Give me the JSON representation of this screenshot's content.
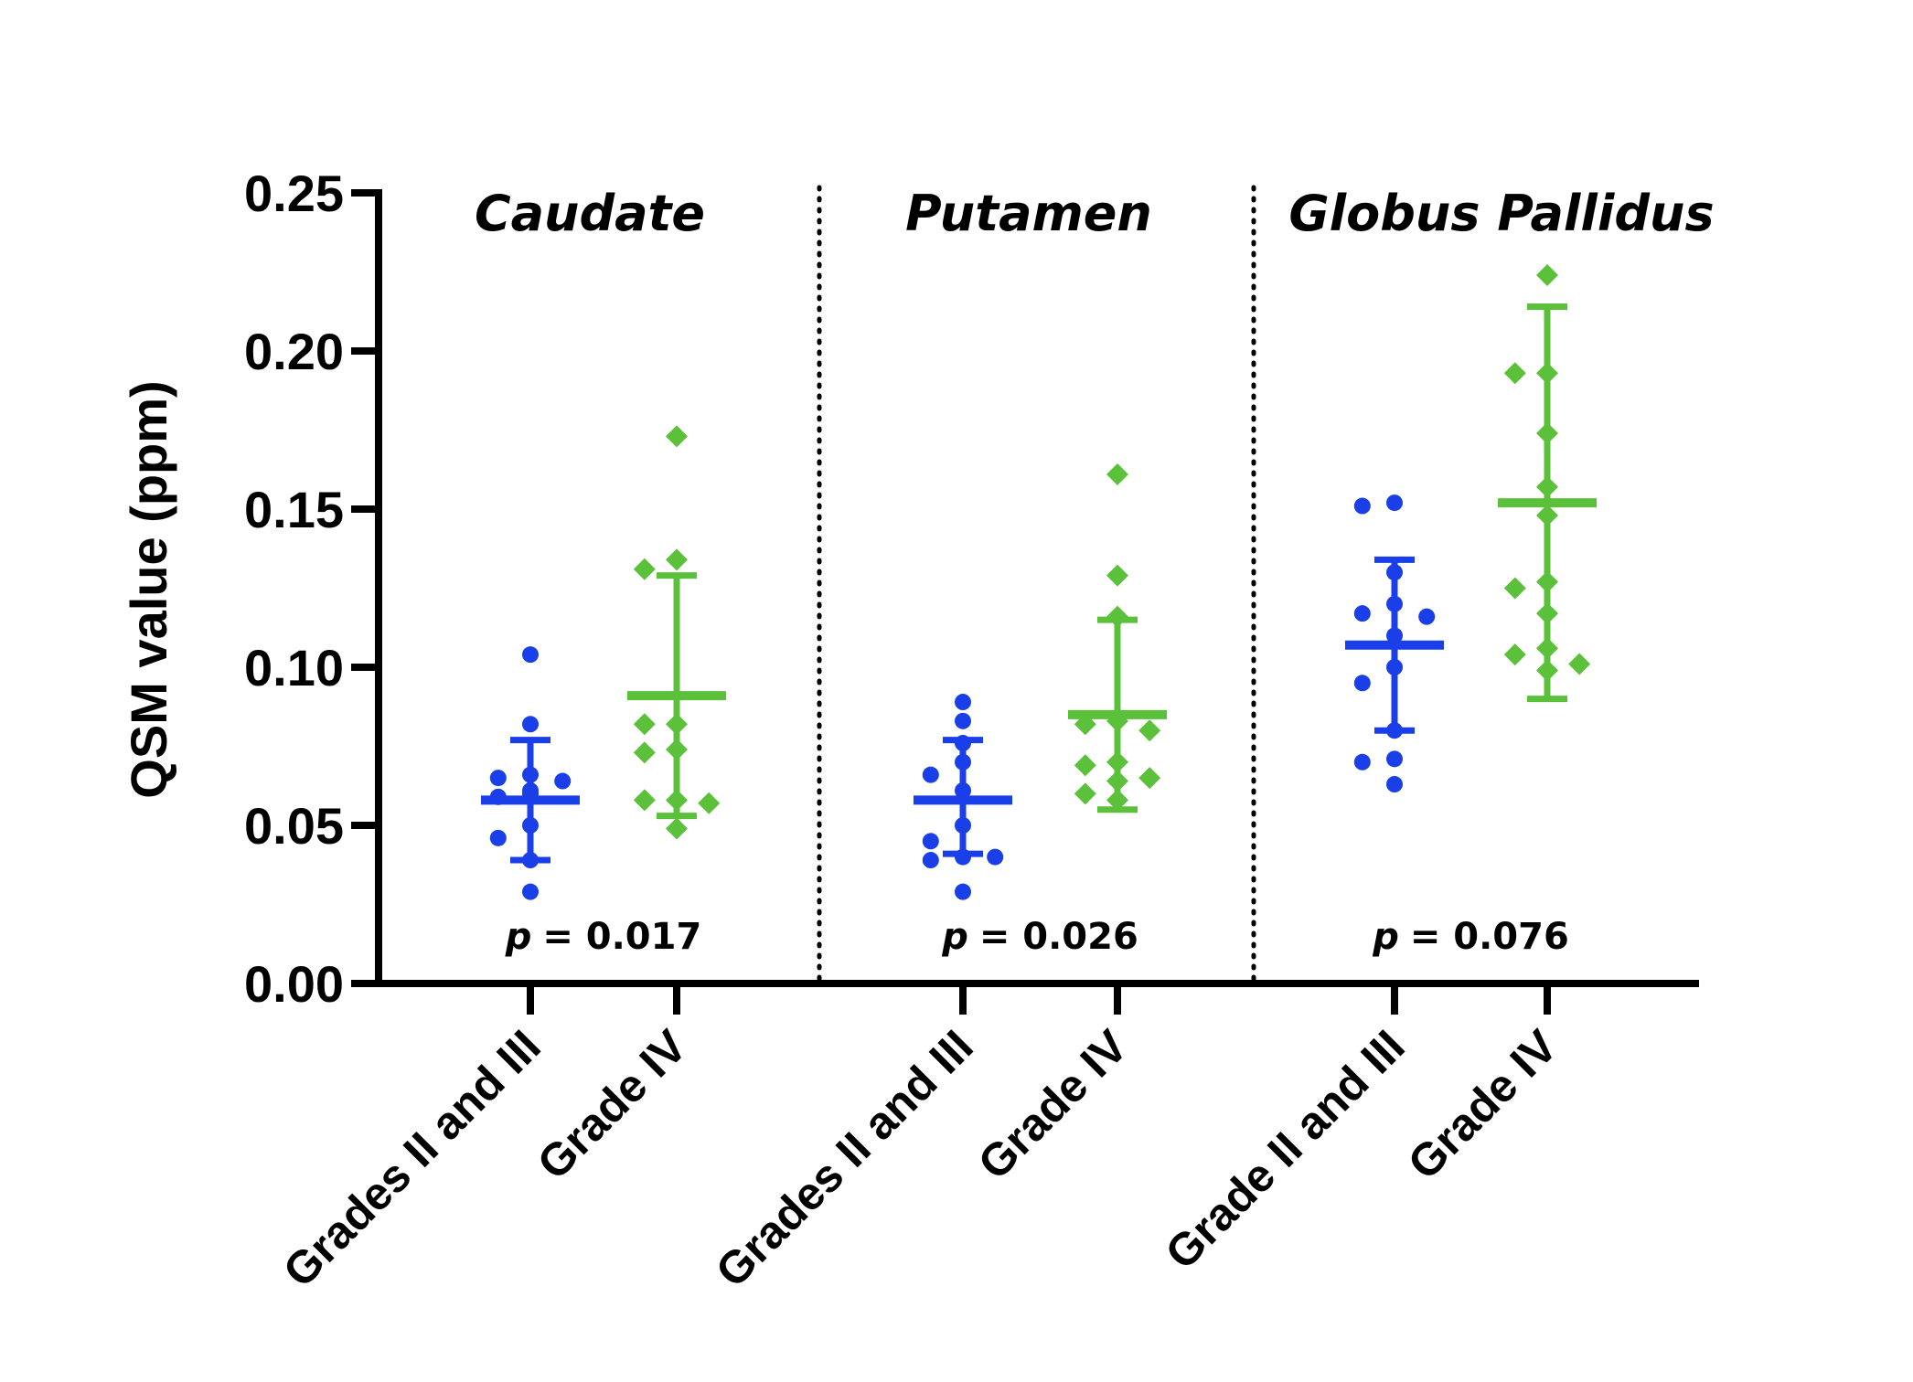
{
  "chart_data": {
    "type": "scatter",
    "ylabel": "QSM value (ppm)",
    "ylim": [
      0,
      0.25
    ],
    "yticks": [
      "0.00",
      "0.05",
      "0.10",
      "0.15",
      "0.20",
      "0.25"
    ],
    "grid": false,
    "colors": {
      "low_grade": "#1a3fe8",
      "grade_iv": "#5cc13a",
      "axis": "#000000"
    },
    "marker_icons": {
      "low_grade": "circle",
      "grade_iv": "diamond"
    },
    "panels": [
      {
        "title": "Caudate",
        "p_prefix": "p",
        "p_text": "= 0.017",
        "groups": [
          {
            "label": "Grades II and III",
            "key": "low_grade",
            "mean": 0.058,
            "sd_low": 0.039,
            "sd_high": 0.077,
            "points": [
              0.104,
              0.082,
              0.066,
              0.065,
              0.064,
              0.061,
              0.06,
              0.059,
              0.05,
              0.046,
              0.039,
              0.029
            ]
          },
          {
            "label": "Grade IV",
            "key": "grade_iv",
            "mean": 0.091,
            "sd_low": 0.053,
            "sd_high": 0.129,
            "points": [
              0.173,
              0.134,
              0.131,
              0.082,
              0.082,
              0.074,
              0.073,
              0.058,
              0.058,
              0.057,
              0.049
            ]
          }
        ]
      },
      {
        "title": "Putamen",
        "p_prefix": "p",
        "p_text": "= 0.026",
        "groups": [
          {
            "label": "Grades II and III",
            "key": "low_grade",
            "mean": 0.058,
            "sd_low": 0.041,
            "sd_high": 0.077,
            "points": [
              0.089,
              0.083,
              0.076,
              0.07,
              0.066,
              0.061,
              0.05,
              0.045,
              0.04,
              0.04,
              0.039,
              0.029
            ]
          },
          {
            "label": "Grade IV",
            "key": "grade_iv",
            "mean": 0.085,
            "sd_low": 0.055,
            "sd_high": 0.115,
            "points": [
              0.161,
              0.129,
              0.116,
              0.083,
              0.082,
              0.08,
              0.07,
              0.069,
              0.065,
              0.064,
              0.06,
              0.058
            ]
          }
        ]
      },
      {
        "title": "Globus Pallidus",
        "p_prefix": "p",
        "p_text": "= 0.076",
        "groups": [
          {
            "label": "Grade II and III",
            "key": "low_grade",
            "mean": 0.107,
            "sd_low": 0.08,
            "sd_high": 0.134,
            "points": [
              0.152,
              0.151,
              0.13,
              0.12,
              0.117,
              0.116,
              0.11,
              0.1,
              0.095,
              0.08,
              0.071,
              0.07,
              0.063
            ]
          },
          {
            "label": "Grade IV",
            "key": "grade_iv",
            "mean": 0.152,
            "sd_low": 0.09,
            "sd_high": 0.214,
            "points": [
              0.224,
              0.193,
              0.193,
              0.174,
              0.157,
              0.148,
              0.127,
              0.125,
              0.117,
              0.106,
              0.104,
              0.101,
              0.099
            ]
          }
        ]
      }
    ]
  }
}
